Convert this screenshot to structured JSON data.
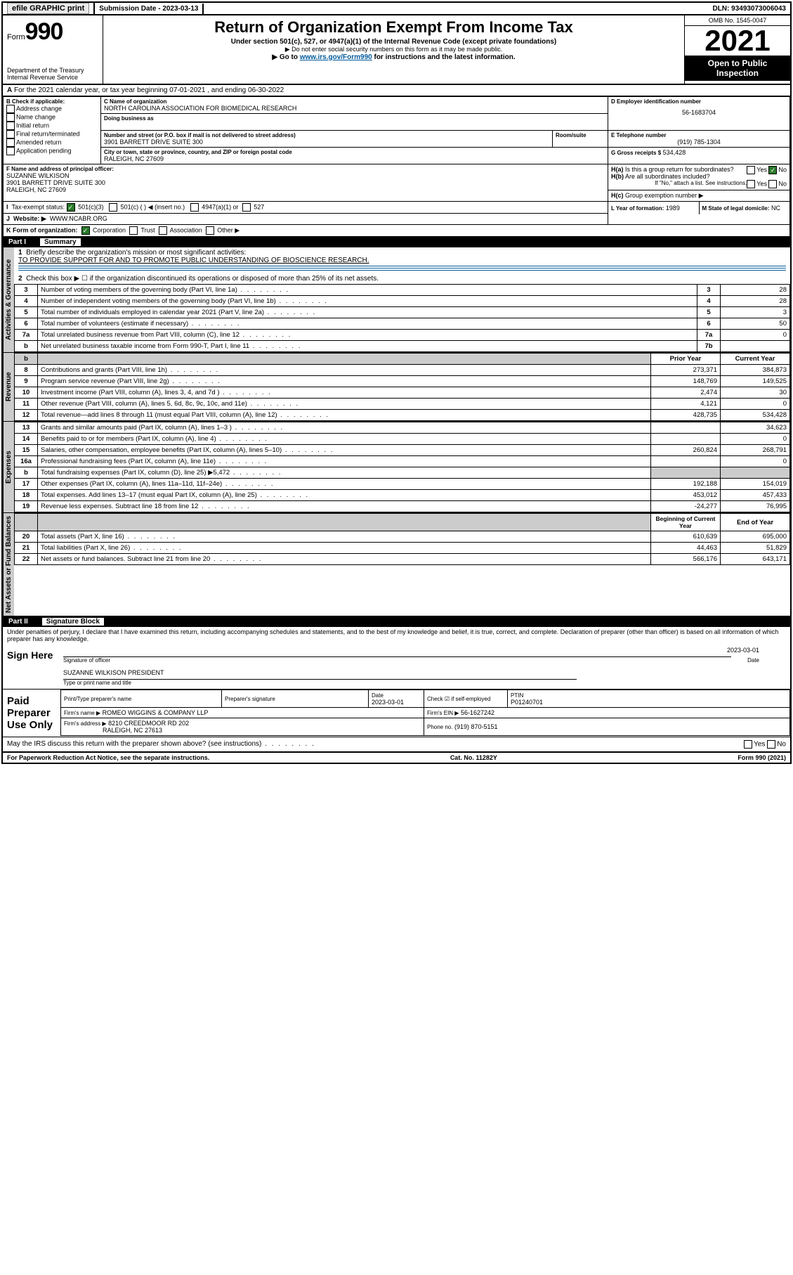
{
  "topbar": {
    "efile": "efile GRAPHIC print",
    "subdate_label": "Submission Date - ",
    "subdate": "2023-03-13",
    "dln": "DLN: 93493073006043"
  },
  "header": {
    "form_label": "Form",
    "form_num": "990",
    "dept": "Department of the Treasury",
    "irs": "Internal Revenue Service",
    "title": "Return of Organization Exempt From Income Tax",
    "sub1": "Under section 501(c), 527, or 4947(a)(1) of the Internal Revenue Code (except private foundations)",
    "sub2": "▶ Do not enter social security numbers on this form as it may be made public.",
    "sub3_pre": "▶ Go to ",
    "sub3_link": "www.irs.gov/Form990",
    "sub3_post": " for instructions and the latest information.",
    "omb": "OMB No. 1545-0047",
    "year": "2021",
    "open": "Open to Public Inspection"
  },
  "lineA": "For the 2021 calendar year, or tax year beginning 07-01-2021   , and ending 06-30-2022",
  "B": {
    "label": "B Check if applicable:",
    "items": [
      "Address change",
      "Name change",
      "Initial return",
      "Final return/terminated",
      "Amended return",
      "Application pending"
    ]
  },
  "C": {
    "name_label": "C Name of organization",
    "name": "NORTH CAROLINA ASSOCIATION FOR BIOMEDICAL RESEARCH",
    "dba_label": "Doing business as",
    "street_label": "Number and street (or P.O. box if mail is not delivered to street address)",
    "room_label": "Room/suite",
    "street": "3901 BARRETT DRIVE SUITE 300",
    "city_label": "City or town, state or province, country, and ZIP or foreign postal code",
    "city": "RALEIGH, NC  27609"
  },
  "D": {
    "label": "D Employer identification number",
    "val": "56-1683704"
  },
  "E": {
    "label": "E Telephone number",
    "val": "(919) 785-1304"
  },
  "G": {
    "label": "G Gross receipts $",
    "val": "534,428"
  },
  "F": {
    "label": "F  Name and address of principal officer:",
    "name": "SUZANNE WILKISON",
    "addr1": "3901 BARRETT DRIVE SUITE 300",
    "addr2": "RALEIGH, NC  27609"
  },
  "H": {
    "a": "Is this a group return for subordinates?",
    "b": "Are all subordinates included?",
    "bnote": "If \"No,\" attach a list. See instructions.",
    "c": "Group exemption number ▶"
  },
  "I": {
    "label": "Tax-exempt status:",
    "opts": [
      "501(c)(3)",
      "501(c) (  ) ◀ (insert no.)",
      "4947(a)(1) or",
      "527"
    ]
  },
  "J": {
    "label": "Website: ▶",
    "val": "WWW.NCABR.ORG"
  },
  "K": {
    "label": "K Form of organization:",
    "opts": [
      "Corporation",
      "Trust",
      "Association",
      "Other ▶"
    ]
  },
  "L": {
    "label": "L Year of formation:",
    "val": "1989"
  },
  "M": {
    "label": "M State of legal domicile:",
    "val": "NC"
  },
  "part1": {
    "label": "Part I",
    "title": "Summary"
  },
  "tabs": {
    "gov": "Activities & Governance",
    "rev": "Revenue",
    "exp": "Expenses",
    "net": "Net Assets or Fund Balances"
  },
  "q1": {
    "label": "Briefly describe the organization's mission or most significant activities:",
    "val": "TO PROVIDE SUPPORT FOR AND TO PROMOTE PUBLIC UNDERSTANDING OF BIOSCIENCE RESEARCH."
  },
  "q2": "Check this box ▶ ☐  if the organization discontinued its operations or disposed of more than 25% of its net assets.",
  "gov_lines": [
    {
      "n": "3",
      "t": "Number of voting members of the governing body (Part VI, line 1a)",
      "box": "3",
      "v": "28"
    },
    {
      "n": "4",
      "t": "Number of independent voting members of the governing body (Part VI, line 1b)",
      "box": "4",
      "v": "28"
    },
    {
      "n": "5",
      "t": "Total number of individuals employed in calendar year 2021 (Part V, line 2a)",
      "box": "5",
      "v": "3"
    },
    {
      "n": "6",
      "t": "Total number of volunteers (estimate if necessary)",
      "box": "6",
      "v": "50"
    },
    {
      "n": "7a",
      "t": "Total unrelated business revenue from Part VIII, column (C), line 12",
      "box": "7a",
      "v": "0"
    },
    {
      "n": "b",
      "t": "Net unrelated business taxable income from Form 990-T, Part I, line 11",
      "box": "7b",
      "v": ""
    }
  ],
  "yrhdr": {
    "p": "Prior Year",
    "c": "Current Year"
  },
  "rev_lines": [
    {
      "n": "8",
      "t": "Contributions and grants (Part VIII, line 1h)",
      "p": "273,371",
      "c": "384,873"
    },
    {
      "n": "9",
      "t": "Program service revenue (Part VIII, line 2g)",
      "p": "148,769",
      "c": "149,525"
    },
    {
      "n": "10",
      "t": "Investment income (Part VIII, column (A), lines 3, 4, and 7d )",
      "p": "2,474",
      "c": "30"
    },
    {
      "n": "11",
      "t": "Other revenue (Part VIII, column (A), lines 5, 6d, 8c, 9c, 10c, and 11e)",
      "p": "4,121",
      "c": "0"
    },
    {
      "n": "12",
      "t": "Total revenue—add lines 8 through 11 (must equal Part VIII, column (A), line 12)",
      "p": "428,735",
      "c": "534,428"
    }
  ],
  "exp_lines": [
    {
      "n": "13",
      "t": "Grants and similar amounts paid (Part IX, column (A), lines 1–3 )",
      "p": "",
      "c": "34,623"
    },
    {
      "n": "14",
      "t": "Benefits paid to or for members (Part IX, column (A), line 4)",
      "p": "",
      "c": "0"
    },
    {
      "n": "15",
      "t": "Salaries, other compensation, employee benefits (Part IX, column (A), lines 5–10)",
      "p": "260,824",
      "c": "268,791"
    },
    {
      "n": "16a",
      "t": "Professional fundraising fees (Part IX, column (A), line 11e)",
      "p": "",
      "c": "0"
    },
    {
      "n": "b",
      "t": "Total fundraising expenses (Part IX, column (D), line 25) ▶5,472",
      "p": "shade",
      "c": "shade"
    },
    {
      "n": "17",
      "t": "Other expenses (Part IX, column (A), lines 11a–11d, 11f–24e)",
      "p": "192,188",
      "c": "154,019"
    },
    {
      "n": "18",
      "t": "Total expenses. Add lines 13–17 (must equal Part IX, column (A), line 25)",
      "p": "453,012",
      "c": "457,433"
    },
    {
      "n": "19",
      "t": "Revenue less expenses. Subtract line 18 from line 12",
      "p": "-24,277",
      "c": "76,995"
    }
  ],
  "nethdr": {
    "p": "Beginning of Current Year",
    "c": "End of Year"
  },
  "net_lines": [
    {
      "n": "20",
      "t": "Total assets (Part X, line 16)",
      "p": "610,639",
      "c": "695,000"
    },
    {
      "n": "21",
      "t": "Total liabilities (Part X, line 26)",
      "p": "44,463",
      "c": "51,829"
    },
    {
      "n": "22",
      "t": "Net assets or fund balances. Subtract line 21 from line 20",
      "p": "566,176",
      "c": "643,171"
    }
  ],
  "part2": {
    "label": "Part II",
    "title": "Signature Block"
  },
  "decl": "Under penalties of perjury, I declare that I have examined this return, including accompanying schedules and statements, and to the best of my knowledge and belief, it is true, correct, and complete. Declaration of preparer (other than officer) is based on all information of which preparer has any knowledge.",
  "sign": {
    "here": "Sign Here",
    "sig_label": "Signature of officer",
    "date_label": "Date",
    "date": "2023-03-01",
    "name": "SUZANNE WILKISON PRESIDENT",
    "name_label": "Type or print name and title"
  },
  "paid": {
    "label": "Paid Preparer Use Only",
    "cols": [
      "Print/Type preparer's name",
      "Preparer's signature",
      "Date",
      "",
      "PTIN"
    ],
    "date": "2023-03-01",
    "self": "Check ☑ if self-employed",
    "ptin": "P01240701",
    "firm_label": "Firm's name   ▶",
    "firm": "ROMEO WIGGINS & COMPANY LLP",
    "ein_label": "Firm's EIN ▶",
    "ein": "56-1627242",
    "addr_label": "Firm's address ▶",
    "addr1": "8210 CREEDMOOR RD 202",
    "addr2": "RALEIGH, NC  27613",
    "phone_label": "Phone no.",
    "phone": "(919) 870-5151"
  },
  "discuss": "May the IRS discuss this return with the preparer shown above? (see instructions)",
  "footer": {
    "l": "For Paperwork Reduction Act Notice, see the separate instructions.",
    "m": "Cat. No. 11282Y",
    "r": "Form 990 (2021)"
  }
}
